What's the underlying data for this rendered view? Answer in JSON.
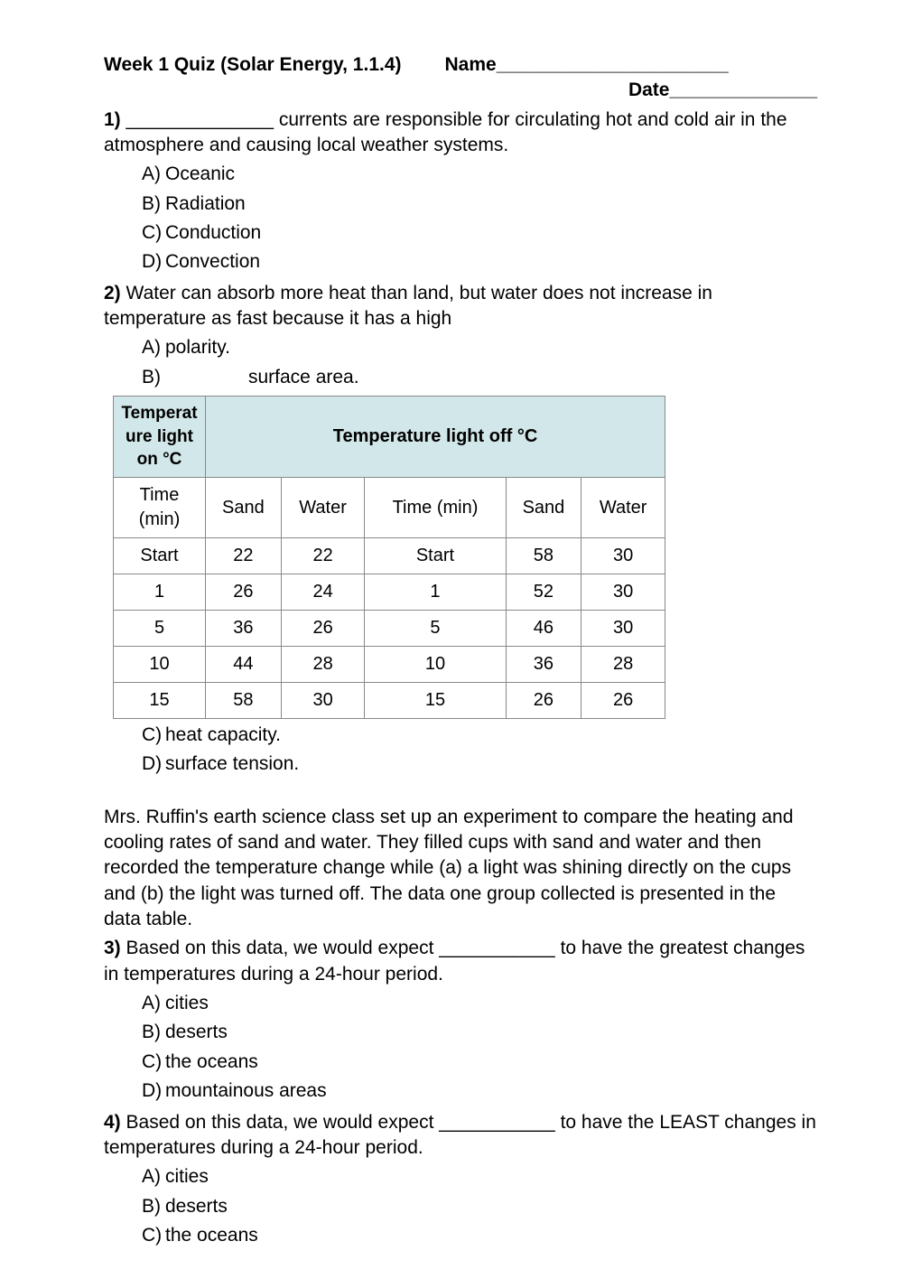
{
  "header": {
    "title": "Week 1 Quiz (Solar Energy, 1.1.4)",
    "name_label": "Name",
    "name_blank": "______________________",
    "date_label": "Date",
    "date_blank": "______________"
  },
  "q1": {
    "num": "1)",
    "blank": "______________",
    "text_after": " currents are responsible for circulating hot and cold air in the atmosphere and causing local weather systems.",
    "options": {
      "A": "Oceanic",
      "B": "Radiation",
      "C": "Conduction",
      "D": "Convection"
    }
  },
  "q2": {
    "num": "2)",
    "text": " Water can absorb more heat than land, but water does not increase in temperature as fast because it has a high",
    "options_ab": {
      "A": "polarity.",
      "B": "surface area."
    },
    "options_cd": {
      "C": "heat capacity.",
      "D": "surface tension."
    }
  },
  "table": {
    "header_on": "Temperat\nure light on °C",
    "header_off": "Temperature light off °C",
    "columns": [
      "Time (min)",
      "Sand",
      "Water",
      "Time (min)",
      "Sand",
      "Water"
    ],
    "rows": [
      [
        "Start",
        "22",
        "22",
        "Start",
        "58",
        "30"
      ],
      [
        "1",
        "26",
        "24",
        "1",
        "52",
        "30"
      ],
      [
        "5",
        "36",
        "26",
        "5",
        "46",
        "30"
      ],
      [
        "10",
        "44",
        "28",
        "10",
        "36",
        "28"
      ],
      [
        "15",
        "58",
        "30",
        "15",
        "26",
        "26"
      ]
    ],
    "header_bg": "#d2e7e9",
    "border_color": "#888888"
  },
  "paragraph": "Mrs. Ruffin's earth science class set up an experiment to compare the heating and cooling rates of sand and water. They filled cups with sand and water and then recorded the temperature change while (a) a light was shining directly on the cups and (b) the light was turned off. The data one group collected is presented in the data table.",
  "q3": {
    "num": "3)",
    "text_before": " Based on this data, we would expect ",
    "blank": "___________",
    "text_after": " to have the greatest changes in temperatures during a 24-hour period.",
    "options": {
      "A": "cities",
      "B": "deserts",
      "C": "the oceans",
      "D": "mountainous areas"
    }
  },
  "q4": {
    "num": "4)",
    "text_before": " Based on this data, we would expect ",
    "blank": "___________",
    "text_after": " to have the LEAST changes in temperatures during a 24-hour period.",
    "options": {
      "A": "cities",
      "B": "deserts",
      "C": "the oceans"
    }
  },
  "letters": {
    "A": "A)",
    "B": "B)",
    "C": "C)",
    "D": "D)"
  }
}
